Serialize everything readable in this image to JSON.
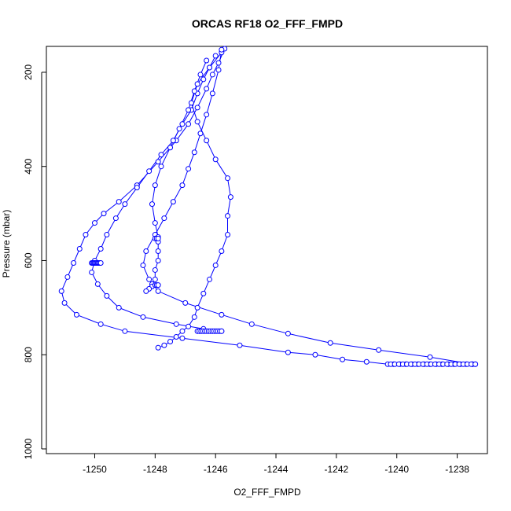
{
  "chart_data": {
    "type": "line",
    "title": "ORCAS RF18 O2_FFF_FMPD",
    "xlabel": "O2_FFF_FMPD",
    "ylabel": "Pressure (mbar)",
    "xlim": [
      -1251.6,
      -1237.0
    ],
    "ylim": [
      1010,
      145
    ],
    "y_reversed": true,
    "xticks": [
      -1250,
      -1248,
      -1246,
      -1244,
      -1242,
      -1240,
      -1238
    ],
    "yticks": [
      200,
      400,
      600,
      800,
      1000
    ],
    "color": "#0000ff",
    "marker": "open-circle",
    "series": [
      {
        "x": [
          -1245.7,
          -1245.9,
          -1246.1,
          -1246.3,
          -1246.6,
          -1246.9,
          -1247.3,
          -1247.9,
          -1248.6,
          -1249.2,
          -1249.7,
          -1250.0,
          -1250.3,
          -1250.5,
          -1250.7,
          -1250.9,
          -1251.1,
          -1251.0,
          -1250.6,
          -1249.8,
          -1249.0,
          -1247.1,
          -1245.2,
          -1243.6,
          -1242.7,
          -1241.8,
          -1241.0,
          -1240.3,
          -1240.1,
          -1239.9,
          -1239.7,
          -1239.5,
          -1239.3,
          -1239.1,
          -1238.9,
          -1238.7,
          -1238.5,
          -1238.3,
          -1238.1,
          -1237.9,
          -1237.7,
          -1237.5,
          -1237.4
        ],
        "y": [
          150,
          180,
          205,
          235,
          275,
          310,
          345,
          390,
          440,
          475,
          500,
          520,
          545,
          575,
          605,
          635,
          665,
          690,
          715,
          735,
          750,
          765,
          780,
          795,
          800,
          810,
          815,
          820,
          820,
          820,
          820,
          820,
          820,
          820,
          820,
          820,
          820,
          820,
          820,
          820,
          820,
          820,
          820
        ]
      },
      {
        "x": [
          -1245.8,
          -1246.2,
          -1246.6,
          -1246.8,
          -1246.6,
          -1246.3,
          -1246.0,
          -1245.6,
          -1245.5,
          -1245.6,
          -1245.6,
          -1245.8,
          -1246.0,
          -1246.2,
          -1246.4,
          -1246.6,
          -1246.7,
          -1246.9,
          -1247.1,
          -1247.3,
          -1247.5,
          -1247.7,
          -1247.9
        ],
        "y": [
          158,
          190,
          225,
          265,
          305,
          345,
          385,
          425,
          465,
          505,
          545,
          580,
          610,
          640,
          670,
          700,
          720,
          740,
          750,
          762,
          772,
          780,
          785
        ]
      },
      {
        "x": [
          -1245.8,
          -1245.9,
          -1246.1,
          -1246.3,
          -1246.5,
          -1246.7,
          -1246.9,
          -1247.1,
          -1247.4,
          -1247.7,
          -1248.0,
          -1248.3,
          -1248.4,
          -1248.2,
          -1247.9,
          -1247.0,
          -1245.8,
          -1244.8,
          -1243.6,
          -1242.2,
          -1240.6,
          -1238.9,
          -1237.5
        ],
        "y": [
          152,
          195,
          245,
          290,
          330,
          370,
          405,
          440,
          475,
          510,
          545,
          580,
          610,
          640,
          665,
          690,
          715,
          735,
          755,
          775,
          790,
          805,
          820
        ]
      },
      {
        "x": [
          -1246.0,
          -1246.2,
          -1246.4,
          -1246.6,
          -1246.8,
          -1247.1,
          -1247.4,
          -1247.8,
          -1248.2,
          -1248.6,
          -1249.0,
          -1249.3,
          -1249.6,
          -1249.8,
          -1250.0,
          -1250.1,
          -1249.9,
          -1249.6,
          -1249.2,
          -1248.4,
          -1247.3,
          -1246.4,
          -1245.8
        ],
        "y": [
          165,
          190,
          215,
          245,
          280,
          310,
          345,
          375,
          410,
          445,
          480,
          510,
          545,
          575,
          600,
          625,
          650,
          675,
          700,
          720,
          735,
          745,
          750
        ]
      },
      {
        "x": [
          -1246.3,
          -1246.5,
          -1246.7,
          -1246.9,
          -1247.2,
          -1247.5,
          -1247.8,
          -1248.0,
          -1248.1,
          -1248.0,
          -1247.9,
          -1247.9,
          -1247.9,
          -1247.9,
          -1248.0,
          -1248.0,
          -1248.1,
          -1248.1,
          -1248.2,
          -1248.3
        ],
        "y": [
          175,
          205,
          240,
          280,
          320,
          360,
          400,
          440,
          480,
          520,
          550,
          560,
          580,
          600,
          620,
          640,
          650,
          655,
          660,
          665
        ]
      }
    ],
    "clusters": [
      {
        "x0": -1250.1,
        "x1": -1249.8,
        "y": 605,
        "n": 10
      },
      {
        "x0": -1246.6,
        "x1": -1245.8,
        "y": 750,
        "n": 14
      },
      {
        "x0": -1240.2,
        "x1": -1237.4,
        "y": 820,
        "n": 22
      },
      {
        "x0": -1248.0,
        "x1": -1247.9,
        "y": 553,
        "n": 3
      },
      {
        "x0": -1248.0,
        "x1": -1247.9,
        "y": 652,
        "n": 3
      }
    ]
  }
}
